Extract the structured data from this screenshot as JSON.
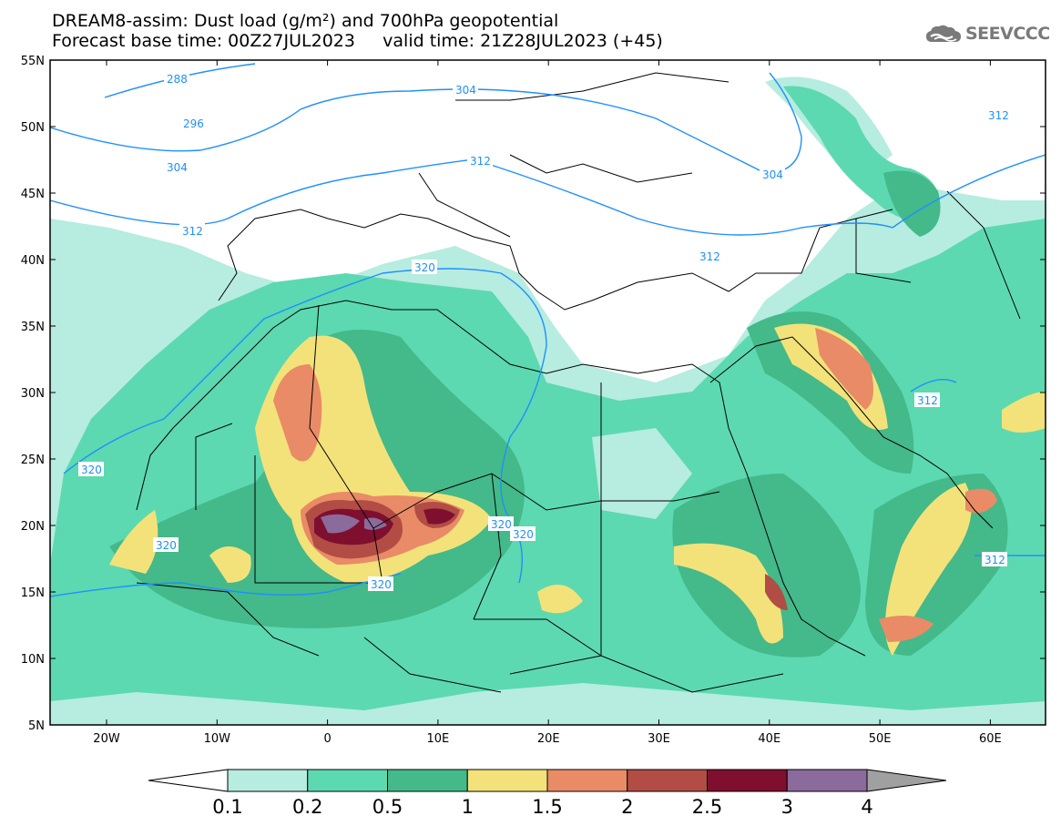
{
  "title_line1": "DREAM8-assim: Dust load (g/m²) and 700hPa geopotential",
  "title_line2": "Forecast base time: 00Z27JUL2023     valid time: 21Z28JUL2023 (+45)",
  "logo_text": "SEEVCCC",
  "lat_labels": [
    "55N",
    "50N",
    "45N",
    "40N",
    "35N",
    "30N",
    "25N",
    "20N",
    "15N",
    "10N",
    "5N"
  ],
  "lon_labels": [
    "20W",
    "10W",
    "0",
    "10E",
    "20E",
    "30E",
    "40E",
    "50E",
    "60E"
  ],
  "contour_labels": [
    "288",
    "296",
    "304",
    "304",
    "312",
    "304",
    "312",
    "312",
    "312",
    "320",
    "320",
    "320",
    "320",
    "320",
    "320",
    "312",
    "312"
  ],
  "colorbar": {
    "levels": [
      "0.1",
      "0.2",
      "0.5",
      "1",
      "1.5",
      "2",
      "2.5",
      "3",
      "4"
    ],
    "colors": [
      "#b7ece0",
      "#5cd9b0",
      "#44b98a",
      "#f3e27a",
      "#e98b66",
      "#b24d45",
      "#7e0f2f",
      "#8b6a9c",
      "#a0a0a0"
    ]
  },
  "colors": {
    "contour": "#1e90ff",
    "border": "#000000",
    "ocean": "#ffffff"
  }
}
